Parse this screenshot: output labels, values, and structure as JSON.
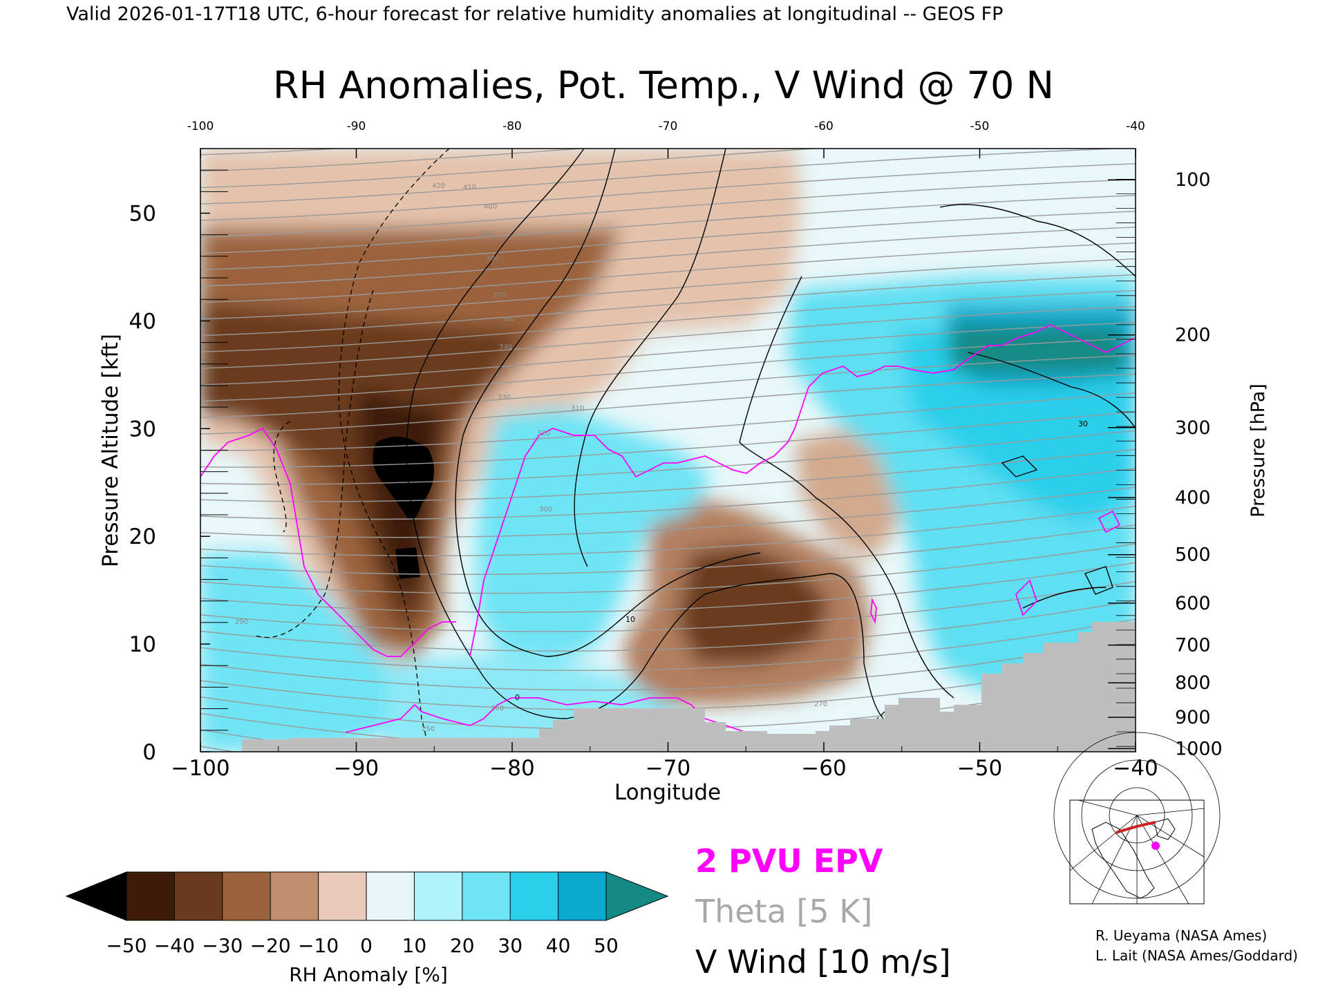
{
  "header": {
    "valid_line": "Valid 2026-01-17T18 UTC, 6-hour forecast for relative humidity anomalies at longitudinal -- GEOS FP",
    "title": "RH Anomalies, Pot. Temp., V Wind @ 70 N"
  },
  "chart_data": {
    "type": "heatmap",
    "title": "RH Anomalies, Pot. Temp., V Wind @ 70 N",
    "xlabel": "Longitude",
    "ylabel": "Pressure Altitude [kft]",
    "ylabel_right": "Pressure [hPa]",
    "xlim": [
      -100,
      -40
    ],
    "ylim": [
      0,
      56
    ],
    "x_ticks": [
      "-100",
      "-90",
      "-80",
      "-70",
      "-60",
      "-50",
      "-40"
    ],
    "y_ticks": [
      "0",
      "10",
      "20",
      "30",
      "40",
      "50"
    ],
    "pressure_ticks": [
      {
        "label": "100",
        "kft": 53.1
      },
      {
        "label": "200",
        "kft": 38.7
      },
      {
        "label": "300",
        "kft": 30.1
      },
      {
        "label": "400",
        "kft": 23.6
      },
      {
        "label": "500",
        "kft": 18.3
      },
      {
        "label": "600",
        "kft": 13.8
      },
      {
        "label": "700",
        "kft": 9.9
      },
      {
        "label": "800",
        "kft": 6.4
      },
      {
        "label": "900",
        "kft": 3.2
      },
      {
        "label": "1000",
        "kft": 0.3
      }
    ],
    "colorbar": {
      "label": "RH Anomaly [%]",
      "ticks": [
        "-50",
        "-40",
        "-30",
        "-20",
        "-10",
        "0",
        "10",
        "20",
        "30",
        "40",
        "50"
      ],
      "colors": [
        "#000000",
        "#3c1c08",
        "#6b3a1c",
        "#9b633d",
        "#c28e6d",
        "#e8cbb8",
        "#e6f6f6",
        "#b2f2fb",
        "#6ee4f5",
        "#2bcfec",
        "#0ba9ce",
        "#067f9c",
        "#138a84"
      ]
    },
    "legend": {
      "epv": "2 PVU EPV",
      "theta": "Theta [5 K]",
      "vwind": "V Wind [10 m/s]",
      "epv_color": "#ff00ff",
      "theta_color": "#a0a0a0",
      "vwind_color": "#000000"
    },
    "theta_labels": [
      "250",
      "260",
      "270",
      "280",
      "290",
      "300",
      "310",
      "320",
      "330",
      "340",
      "360",
      "370",
      "380",
      "390",
      "400",
      "410",
      "420"
    ],
    "vwind_labels": [
      "0",
      "10",
      "30"
    ],
    "terrain_color": "#bebebe"
  },
  "credits": {
    "line1": "R. Ueyama (NASA Ames)",
    "line2": "L. Lait (NASA Ames/Goddard)"
  }
}
